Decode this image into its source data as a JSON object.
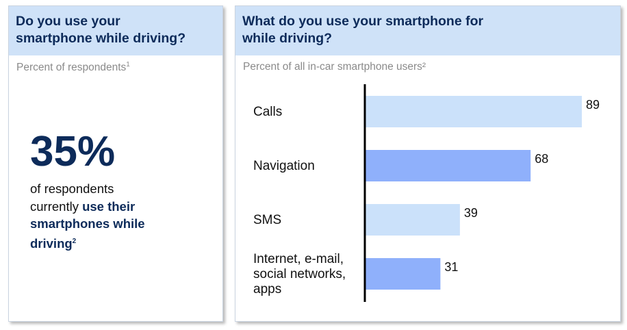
{
  "left_panel": {
    "title_line1": "Do you use your",
    "title_line2": "smartphone while driving?",
    "subtitle": "Percent of respondents",
    "subtitle_sup": "1",
    "big_value": "35%",
    "text_line1": "of respondents",
    "text_line2_plain": "currently ",
    "text_line2_bold": "use their",
    "text_line3_bold": "smartphones while",
    "text_line4_bold": "driving",
    "text_line4_sup": "2"
  },
  "right_panel": {
    "title_line1": "What do you use your smartphone for",
    "title_line2": "while driving?",
    "subtitle": "Percent of all in-car smartphone users²"
  },
  "colors": {
    "header_bg": "#cfe2f8",
    "title_text": "#0d2b5a",
    "bar_light": "#cbe1fa",
    "bar_dark": "#8fb0fb",
    "axis": "#000000"
  },
  "chart_data": {
    "type": "bar",
    "orientation": "horizontal",
    "categories": [
      [
        "Calls"
      ],
      [
        "Navigation"
      ],
      [
        "SMS"
      ],
      [
        "Internet, e-mail,",
        "social networks,",
        "apps"
      ]
    ],
    "values": [
      89,
      68,
      39,
      31
    ],
    "value_labels": [
      "89",
      "68",
      "39",
      "31"
    ],
    "xlim": [
      0,
      100
    ],
    "grid": false,
    "legend": "none"
  }
}
